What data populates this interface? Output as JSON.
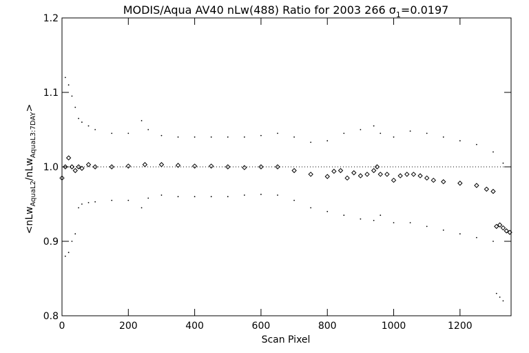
{
  "chart_data": {
    "type": "scatter",
    "title": "MODIS/Aqua AV40 nLw(488) Ratio for 2003 266 ",
    "title_sigma_sym": "σ",
    "title_sigma_sub": "1",
    "title_sigma_val": "=0.0197",
    "xlabel": "Scan Pixel",
    "ylabel": {
      "open": "<nLw",
      "sub1": "AquaL2",
      "mid": "/nLw",
      "sub2": "AquaL3:7DAY",
      "close": ">"
    },
    "xlim": [
      0,
      1354
    ],
    "ylim": [
      0.8,
      1.2
    ],
    "xticks": [
      0,
      200,
      400,
      600,
      800,
      1000,
      1200
    ],
    "xtick_labels": [
      "0",
      "200",
      "400",
      "600",
      "800",
      "1000",
      "1200"
    ],
    "yticks": [
      0.8,
      0.9,
      1.0,
      1.1,
      1.2
    ],
    "ytick_labels": [
      "0.8",
      "0.9",
      "1.0",
      "1.1",
      "1.2"
    ],
    "reference_line": 1.0,
    "series": [
      {
        "marker": "diamond",
        "x": [
          0,
          10,
          20,
          30,
          40,
          50,
          60,
          80,
          100,
          150,
          200,
          250,
          300,
          350,
          400,
          450,
          500,
          550,
          600,
          650,
          700,
          750,
          800,
          820,
          840,
          860,
          880,
          900,
          920,
          940,
          950,
          960,
          980,
          1000,
          1020,
          1040,
          1060,
          1080,
          1100,
          1120,
          1150,
          1200,
          1250,
          1280,
          1300,
          1310,
          1320,
          1330,
          1340,
          1350
        ],
        "y": [
          0.985,
          1.0,
          1.012,
          1.0,
          0.995,
          1.0,
          0.998,
          1.003,
          1.0,
          1.0,
          1.001,
          1.003,
          1.003,
          1.002,
          1.001,
          1.001,
          1.0,
          0.999,
          1.0,
          1.0,
          0.995,
          0.99,
          0.987,
          0.994,
          0.995,
          0.985,
          0.992,
          0.988,
          0.99,
          0.995,
          1.0,
          0.99,
          0.99,
          0.982,
          0.988,
          0.99,
          0.99,
          0.988,
          0.985,
          0.982,
          0.98,
          0.978,
          0.975,
          0.97,
          0.967,
          0.92,
          0.922,
          0.918,
          0.914,
          0.912
        ]
      },
      {
        "marker": "dot",
        "x": [
          10,
          20,
          30,
          40,
          50,
          60,
          80,
          100,
          150,
          200,
          240,
          260,
          300,
          350,
          400,
          450,
          500,
          550,
          600,
          650,
          700,
          750,
          800,
          850,
          900,
          940,
          960,
          1000,
          1050,
          1100,
          1150,
          1200,
          1250,
          1300,
          1330
        ],
        "y": [
          1.12,
          1.11,
          1.095,
          1.08,
          1.065,
          1.06,
          1.055,
          1.05,
          1.045,
          1.045,
          1.062,
          1.05,
          1.042,
          1.04,
          1.04,
          1.04,
          1.04,
          1.04,
          1.042,
          1.045,
          1.04,
          1.033,
          1.035,
          1.045,
          1.05,
          1.055,
          1.045,
          1.04,
          1.048,
          1.045,
          1.04,
          1.035,
          1.03,
          1.02,
          1.005
        ]
      },
      {
        "marker": "dot",
        "x": [
          10,
          20,
          30,
          40,
          50,
          60,
          80,
          100,
          150,
          200,
          240,
          260,
          300,
          350,
          400,
          450,
          500,
          550,
          600,
          650,
          700,
          750,
          800,
          850,
          900,
          940,
          960,
          1000,
          1050,
          1100,
          1150,
          1200,
          1250,
          1300,
          1310,
          1320,
          1330
        ],
        "y": [
          0.88,
          0.885,
          0.9,
          0.91,
          0.945,
          0.95,
          0.952,
          0.953,
          0.955,
          0.955,
          0.945,
          0.958,
          0.962,
          0.96,
          0.96,
          0.96,
          0.96,
          0.962,
          0.963,
          0.962,
          0.955,
          0.945,
          0.94,
          0.935,
          0.93,
          0.928,
          0.935,
          0.925,
          0.925,
          0.92,
          0.915,
          0.91,
          0.905,
          0.9,
          0.83,
          0.825,
          0.82
        ]
      }
    ]
  }
}
